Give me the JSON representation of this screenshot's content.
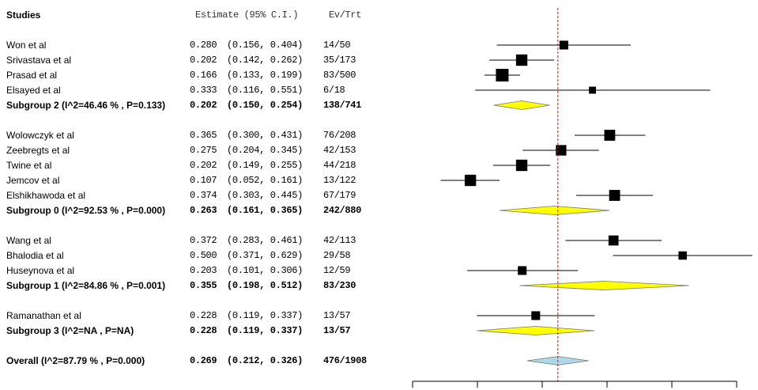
{
  "header": {
    "studies": "Studies",
    "estimate": "Estimate (95% C.I.)",
    "evtrt": "Ev/Trt"
  },
  "rows": [
    {
      "label": "Won et al",
      "est": "0.280",
      "ci": "(0.156, 0.404)",
      "evtrt": "14/50",
      "bold": false,
      "kind": "study",
      "value": 0.28,
      "lo": 0.156,
      "hi": 0.404,
      "weight": 0.55
    },
    {
      "label": "Srivastava et al",
      "est": "0.202",
      "ci": "(0.142, 0.262)",
      "evtrt": "35/173",
      "bold": false,
      "kind": "study",
      "value": 0.202,
      "lo": 0.142,
      "hi": 0.262,
      "weight": 0.85
    },
    {
      "label": "Prasad et al",
      "est": "0.166",
      "ci": "(0.133, 0.199)",
      "evtrt": "83/500",
      "bold": false,
      "kind": "study",
      "value": 0.166,
      "lo": 0.133,
      "hi": 0.199,
      "weight": 1.0
    },
    {
      "label": "Elsayed et al",
      "est": "0.333",
      "ci": "(0.116, 0.551)",
      "evtrt": "6/18",
      "bold": false,
      "kind": "study",
      "value": 0.333,
      "lo": 0.116,
      "hi": 0.551,
      "weight": 0.35
    },
    {
      "label": "Subgroup 2 (I^2=46.46 % , P=0.133)",
      "est": "0.202",
      "ci": "(0.150, 0.254)",
      "evtrt": "138/741",
      "bold": true,
      "kind": "subgroup",
      "value": 0.202,
      "lo": 0.15,
      "hi": 0.254
    },
    {
      "label": "",
      "kind": "blank"
    },
    {
      "label": "Wolowczyk et al",
      "est": "0.365",
      "ci": "(0.300, 0.431)",
      "evtrt": "76/208",
      "bold": false,
      "kind": "study",
      "value": 0.365,
      "lo": 0.3,
      "hi": 0.431,
      "weight": 0.8
    },
    {
      "label": "Zeebregts et al",
      "est": "0.275",
      "ci": "(0.204, 0.345)",
      "evtrt": "42/153",
      "bold": false,
      "kind": "study",
      "value": 0.275,
      "lo": 0.204,
      "hi": 0.345,
      "weight": 0.75
    },
    {
      "label": "Twine et al",
      "est": "0.202",
      "ci": "(0.149, 0.255)",
      "evtrt": "44/218",
      "bold": false,
      "kind": "study",
      "value": 0.202,
      "lo": 0.149,
      "hi": 0.255,
      "weight": 0.85
    },
    {
      "label": "Jemcov et al",
      "est": "0.107",
      "ci": "(0.052, 0.161)",
      "evtrt": "13/122",
      "bold": false,
      "kind": "study",
      "value": 0.107,
      "lo": 0.052,
      "hi": 0.161,
      "weight": 0.85
    },
    {
      "label": "Elshikhawoda et al",
      "est": "0.374",
      "ci": "(0.303, 0.445)",
      "evtrt": "67/179",
      "bold": false,
      "kind": "study",
      "value": 0.374,
      "lo": 0.303,
      "hi": 0.445,
      "weight": 0.8
    },
    {
      "label": "Subgroup 0 (I^2=92.53 % , P=0.000)",
      "est": "0.263",
      "ci": "(0.161, 0.365)",
      "evtrt": "242/880",
      "bold": true,
      "kind": "subgroup",
      "value": 0.263,
      "lo": 0.161,
      "hi": 0.365
    },
    {
      "label": "",
      "kind": "blank"
    },
    {
      "label": "Wang et al",
      "est": "0.372",
      "ci": "(0.283, 0.461)",
      "evtrt": "42/113",
      "bold": false,
      "kind": "study",
      "value": 0.372,
      "lo": 0.283,
      "hi": 0.461,
      "weight": 0.7
    },
    {
      "label": "Bhalodia et al",
      "est": "0.500",
      "ci": "(0.371, 0.629)",
      "evtrt": "29/58",
      "bold": false,
      "kind": "study",
      "value": 0.5,
      "lo": 0.371,
      "hi": 0.629,
      "weight": 0.5
    },
    {
      "label": "Huseynova et al",
      "est": "0.203",
      "ci": "(0.101, 0.306)",
      "evtrt": "12/59",
      "bold": false,
      "kind": "study",
      "value": 0.203,
      "lo": 0.101,
      "hi": 0.306,
      "weight": 0.55
    },
    {
      "label": "Subgroup 1 (I^2=84.86 % , P=0.001)",
      "est": "0.355",
      "ci": "(0.198, 0.512)",
      "evtrt": "83/230",
      "bold": true,
      "kind": "subgroup",
      "value": 0.355,
      "lo": 0.198,
      "hi": 0.512
    },
    {
      "label": "",
      "kind": "blank"
    },
    {
      "label": "Ramanathan et al",
      "est": "0.228",
      "ci": "(0.119, 0.337)",
      "evtrt": "13/57",
      "bold": false,
      "kind": "study",
      "value": 0.228,
      "lo": 0.119,
      "hi": 0.337,
      "weight": 0.55
    },
    {
      "label": "Subgroup 3 (I^2=NA , P=NA)",
      "est": "0.228",
      "ci": "(0.119, 0.337)",
      "evtrt": "13/57",
      "bold": true,
      "kind": "subgroup",
      "value": 0.228,
      "lo": 0.119,
      "hi": 0.337
    },
    {
      "label": "",
      "kind": "blank"
    },
    {
      "label": "Overall (I^2=87.79 % , P=0.000)",
      "est": "0.269",
      "ci": "(0.212, 0.326)",
      "evtrt": "476/1908",
      "bold": true,
      "kind": "overall",
      "value": 0.269,
      "lo": 0.212,
      "hi": 0.326
    }
  ],
  "chart_data": {
    "type": "forest",
    "reference_line": 0.269,
    "xlim": [
      0.0,
      0.6
    ],
    "colors": {
      "study_box": "#000000",
      "ci_line": "#000000",
      "subgroup_diamond": "#ffff00",
      "overall_diamond": "#add8e6",
      "reference_line": "#ff0000"
    }
  }
}
